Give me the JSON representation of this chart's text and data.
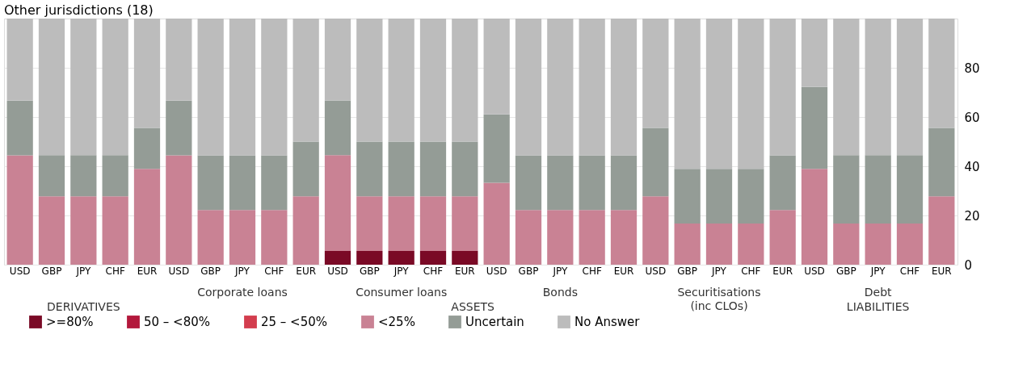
{
  "chart_data": {
    "type": "bar",
    "title": "Other jurisdictions (18)",
    "stacked": true,
    "categories": [
      "USD",
      "GBP",
      "JPY",
      "CHF",
      "EUR",
      "USD",
      "GBP",
      "JPY",
      "CHF",
      "EUR",
      "USD",
      "GBP",
      "JPY",
      "CHF",
      "EUR",
      "USD",
      "GBP",
      "JPY",
      "CHF",
      "EUR",
      "USD",
      "GBP",
      "JPY",
      "CHF",
      "EUR",
      "USD",
      "GBP",
      "JPY",
      "CHF",
      "EUR"
    ],
    "series": [
      {
        "name": ">=80%",
        "color": "#7a0a26",
        "values": [
          0,
          0,
          0,
          0,
          0,
          0,
          0,
          0,
          0,
          0,
          5.6,
          5.6,
          5.6,
          5.6,
          5.6,
          0,
          0,
          0,
          0,
          0,
          0,
          0,
          0,
          0,
          0,
          0,
          0,
          0,
          0,
          0
        ]
      },
      {
        "name": "50 – <80%",
        "color": "#b3183c",
        "values": [
          0,
          0,
          0,
          0,
          0,
          0,
          0,
          0,
          0,
          0,
          0,
          0,
          0,
          0,
          0,
          0,
          0,
          0,
          0,
          0,
          0,
          0,
          0,
          0,
          0,
          0,
          0,
          0,
          0,
          0
        ]
      },
      {
        "name": "25 – <50%",
        "color": "#d33d4e",
        "values": [
          0,
          0,
          0,
          0,
          0,
          0,
          0,
          0,
          0,
          0,
          0,
          0,
          0,
          0,
          0,
          0,
          0,
          0,
          0,
          0,
          0,
          0,
          0,
          0,
          0,
          0,
          0,
          0,
          0,
          0
        ]
      },
      {
        "name": "<25%",
        "color": "#c98294",
        "values": [
          44.4,
          27.8,
          27.8,
          27.8,
          38.9,
          44.4,
          22.2,
          22.2,
          22.2,
          27.8,
          38.9,
          22.2,
          22.2,
          22.2,
          22.2,
          33.3,
          22.2,
          22.2,
          22.2,
          22.2,
          27.8,
          16.7,
          16.7,
          16.7,
          22.2,
          38.9,
          16.7,
          16.7,
          16.7,
          27.8
        ]
      },
      {
        "name": "Uncertain",
        "color": "#949c96",
        "values": [
          22.2,
          16.7,
          16.7,
          16.7,
          16.7,
          22.2,
          22.2,
          22.2,
          22.2,
          22.2,
          22.2,
          22.2,
          22.2,
          22.2,
          22.2,
          27.8,
          22.2,
          22.2,
          22.2,
          22.2,
          27.8,
          22.2,
          22.2,
          22.2,
          22.2,
          33.3,
          27.8,
          27.8,
          27.8,
          27.8
        ]
      },
      {
        "name": "No Answer",
        "color": "#bcbcbc",
        "values": [
          33.4,
          55.5,
          55.5,
          55.5,
          44.4,
          33.4,
          55.6,
          55.6,
          55.6,
          50,
          33.3,
          50,
          50,
          50,
          50,
          38.9,
          55.6,
          55.6,
          55.6,
          55.6,
          44.4,
          61.1,
          61.1,
          61.1,
          55.6,
          27.8,
          55.5,
          55.5,
          55.5,
          44.4
        ]
      }
    ],
    "ylim": [
      0,
      100
    ],
    "yticks": [
      0,
      20,
      40,
      60,
      80
    ],
    "grid": "y",
    "legend": "bottom left",
    "annotations": [
      "DERIVATIVES",
      "Corporate loans",
      "Consumer loans",
      "Bonds",
      "Securitisations\n(inc CLOs)",
      "Debt",
      "ASSETS",
      "LIABILITIES"
    ]
  }
}
